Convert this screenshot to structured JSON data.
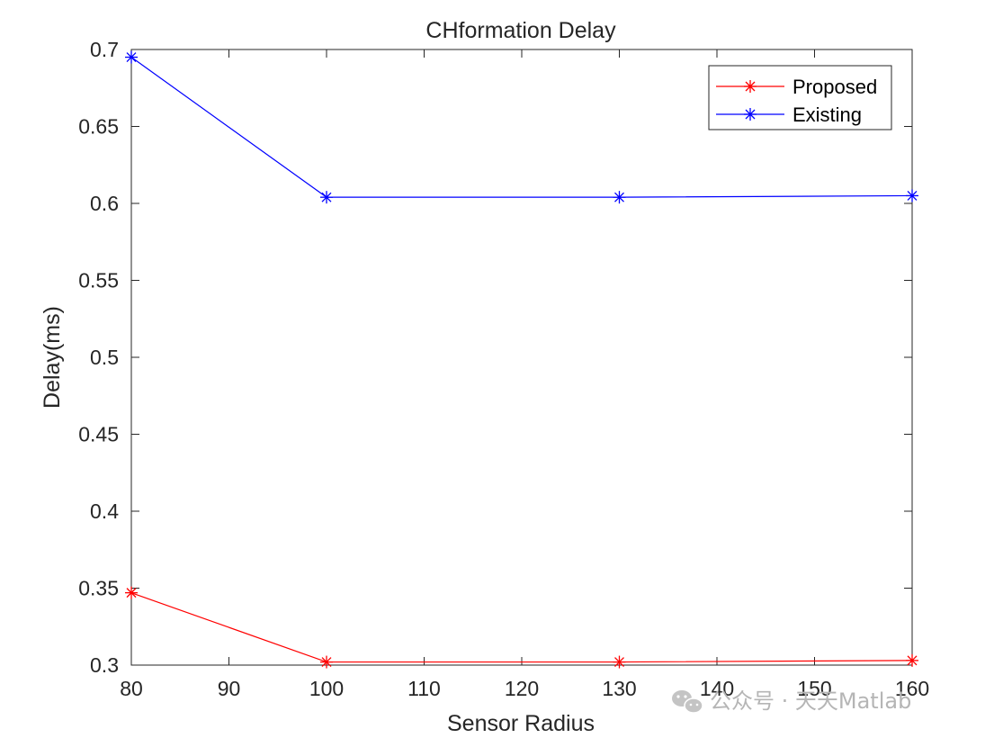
{
  "chart_data": {
    "type": "line",
    "title": "CHformation Delay",
    "xlabel": "Sensor Radius",
    "ylabel": "Delay(ms)",
    "xlim": [
      80,
      160
    ],
    "ylim": [
      0.3,
      0.7
    ],
    "xticks": [
      80,
      90,
      100,
      110,
      120,
      130,
      140,
      150,
      160
    ],
    "xtick_labels": [
      "80",
      "90",
      "100",
      "110",
      "120",
      "130",
      "140",
      "150",
      "160"
    ],
    "yticks": [
      0.3,
      0.35,
      0.4,
      0.45,
      0.5,
      0.55,
      0.6,
      0.65,
      0.7
    ],
    "ytick_labels": [
      "0.3",
      "0.35",
      "0.4",
      "0.45",
      "0.5",
      "0.55",
      "0.6",
      "0.65",
      "0.7"
    ],
    "grid": false,
    "legend_position": "top-right",
    "series": [
      {
        "name": "Proposed",
        "color": "#ff0000",
        "marker": "asterisk",
        "x": [
          80,
          100,
          130,
          160
        ],
        "y": [
          0.347,
          0.302,
          0.302,
          0.303
        ]
      },
      {
        "name": "Existing",
        "color": "#0000ff",
        "marker": "asterisk",
        "x": [
          80,
          100,
          130,
          160
        ],
        "y": [
          0.695,
          0.604,
          0.604,
          0.605
        ]
      }
    ]
  },
  "watermark": {
    "text": "公众号 · 天天Matlab",
    "icon": "wechat-icon"
  }
}
